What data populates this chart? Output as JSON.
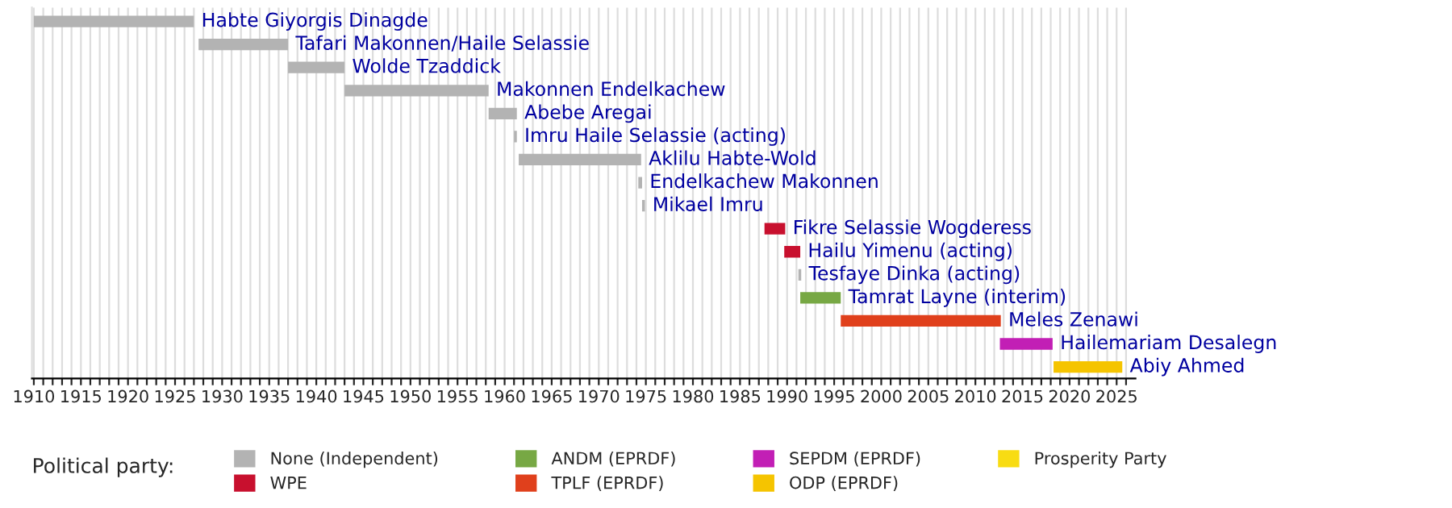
{
  "chart_data": {
    "type": "bar",
    "orientation": "horizontal",
    "legend_title": "Political party:",
    "legend": "bottom",
    "grid": "x",
    "tick_labels": "x",
    "categories": [
      "Habte Giyorgis Dinagde",
      "Tafari Makonnen/Haile Selassie",
      "Wolde Tzaddick",
      "Makonnen Endelkachew",
      "Abebe Aregai",
      "Imru Haile Selassie (acting)",
      "Aklilu Habte-Wold",
      "Endelkachew Makonnen",
      "Mikael Imru",
      "Fikre Selassie Wogderess",
      "Hailu Yimenu (acting)",
      "Tesfaye Dinka (acting)",
      "Tamrat Layne (interim)",
      "Meles Zenawi",
      "Hailemariam Desalegn",
      "Abiy Ahmed"
    ],
    "xlim": [
      1909.8,
      2027
    ],
    "xticks": [
      1910,
      {
        "value": 1911,
        "label": null
      },
      {
        "value": 1912,
        "label": null
      },
      {
        "value": 1913,
        "label": null
      },
      {
        "value": 1914,
        "label": null
      },
      1915,
      {
        "value": 1916,
        "label": null
      },
      {
        "value": 1917,
        "label": null
      },
      {
        "value": 1918,
        "label": null
      },
      {
        "value": 1919,
        "label": null
      },
      1920,
      {
        "value": 1921,
        "label": null
      },
      {
        "value": 1922,
        "label": null
      },
      {
        "value": 1923,
        "label": null
      },
      {
        "value": 1924,
        "label": null
      },
      1925,
      {
        "value": 1926,
        "label": null
      },
      {
        "value": 1927,
        "label": null
      },
      {
        "value": 1928,
        "label": null
      },
      {
        "value": 1929,
        "label": null
      },
      1930,
      {
        "value": 1931,
        "label": null
      },
      {
        "value": 1932,
        "label": null
      },
      {
        "value": 1933,
        "label": null
      },
      {
        "value": 1934,
        "label": null
      },
      1935,
      {
        "value": 1936,
        "label": null
      },
      {
        "value": 1937,
        "label": null
      },
      {
        "value": 1938,
        "label": null
      },
      {
        "value": 1939,
        "label": null
      },
      1940,
      {
        "value": 1941,
        "label": null
      },
      {
        "value": 1942,
        "label": null
      },
      {
        "value": 1943,
        "label": null
      },
      {
        "value": 1944,
        "label": null
      },
      1945,
      {
        "value": 1946,
        "label": null
      },
      {
        "value": 1947,
        "label": null
      },
      {
        "value": 1948,
        "label": null
      },
      {
        "value": 1949,
        "label": null
      },
      1950,
      {
        "value": 1951,
        "label": null
      },
      {
        "value": 1952,
        "label": null
      },
      {
        "value": 1953,
        "label": null
      },
      {
        "value": 1954,
        "label": null
      },
      1955,
      {
        "value": 1956,
        "label": null
      },
      {
        "value": 1957,
        "label": null
      },
      {
        "value": 1958,
        "label": null
      },
      {
        "value": 1959,
        "label": null
      },
      1960,
      {
        "value": 1961,
        "label": null
      },
      {
        "value": 1962,
        "label": null
      },
      {
        "value": 1963,
        "label": null
      },
      {
        "value": 1964,
        "label": null
      },
      1965,
      {
        "value": 1966,
        "label": null
      },
      {
        "value": 1967,
        "label": null
      },
      {
        "value": 1968,
        "label": null
      },
      {
        "value": 1969,
        "label": null
      },
      1970,
      {
        "value": 1971,
        "label": null
      },
      {
        "value": 1972,
        "label": null
      },
      {
        "value": 1973,
        "label": null
      },
      {
        "value": 1974,
        "label": null
      },
      1975,
      {
        "value": 1976,
        "label": null
      },
      {
        "value": 1977,
        "label": null
      },
      {
        "value": 1978,
        "label": null
      },
      {
        "value": 1979,
        "label": null
      },
      1980,
      {
        "value": 1981,
        "label": null
      },
      {
        "value": 1982,
        "label": null
      },
      {
        "value": 1983,
        "label": null
      },
      {
        "value": 1984,
        "label": null
      },
      1985,
      {
        "value": 1986,
        "label": null
      },
      {
        "value": 1987,
        "label": null
      },
      {
        "value": 1988,
        "label": null
      },
      {
        "value": 1989,
        "label": null
      },
      1990,
      {
        "value": 1991,
        "label": null
      },
      {
        "value": 1992,
        "label": null
      },
      {
        "value": 1993,
        "label": null
      },
      {
        "value": 1994,
        "label": null
      },
      1995,
      {
        "value": 1996,
        "label": null
      },
      {
        "value": 1997,
        "label": null
      },
      {
        "value": 1998,
        "label": null
      },
      {
        "value": 1999,
        "label": null
      },
      2000,
      {
        "value": 2001,
        "label": null
      },
      {
        "value": 2002,
        "label": null
      },
      {
        "value": 2003,
        "label": null
      },
      {
        "value": 2004,
        "label": null
      },
      2005,
      {
        "value": 2006,
        "label": null
      },
      {
        "value": 2007,
        "label": null
      },
      {
        "value": 2008,
        "label": null
      },
      {
        "value": 2009,
        "label": null
      },
      2010,
      {
        "value": 2011,
        "label": null
      },
      {
        "value": 2012,
        "label": null
      },
      {
        "value": 2013,
        "label": null
      },
      {
        "value": 2014,
        "label": null
      },
      2015,
      {
        "value": 2016,
        "label": null
      },
      {
        "value": 2017,
        "label": null
      },
      {
        "value": 2018,
        "label": null
      },
      {
        "value": 2019,
        "label": null
      },
      2020,
      {
        "value": 2021,
        "label": null
      },
      {
        "value": 2022,
        "label": null
      },
      {
        "value": 2023,
        "label": null
      },
      {
        "value": 2024,
        "label": null
      },
      2025,
      {
        "value": 2026,
        "label": null
      }
    ],
    "series": [
      {
        "name": "None (Independent)",
        "color": "#b3b3b3",
        "base": [
          1910,
          1927.5,
          1937,
          1943,
          1958.3,
          1961,
          1961.5,
          1974.2,
          1974.6,
          null,
          null,
          1991.2,
          null,
          null,
          null,
          null
        ],
        "values": [
          17,
          9.5,
          6,
          15.3,
          3,
          0.3,
          13,
          0.4,
          0.3,
          null,
          null,
          0.3,
          null,
          null,
          null,
          null
        ]
      },
      {
        "name": "WPE",
        "color": "#c8102e",
        "base": [
          null,
          null,
          null,
          null,
          null,
          null,
          null,
          null,
          null,
          1987.6,
          1989.7,
          null,
          null,
          null,
          null,
          null
        ],
        "values": [
          null,
          null,
          null,
          null,
          null,
          null,
          null,
          null,
          null,
          2.2,
          1.7,
          null,
          null,
          null,
          null,
          null
        ]
      },
      {
        "name": "ANDM (EPRDF)",
        "color": "#77a844",
        "base": [
          null,
          null,
          null,
          null,
          null,
          null,
          null,
          null,
          null,
          null,
          null,
          null,
          1991.4,
          null,
          null,
          null
        ],
        "values": [
          null,
          null,
          null,
          null,
          null,
          null,
          null,
          null,
          null,
          null,
          null,
          null,
          4.3,
          null,
          null,
          null
        ]
      },
      {
        "name": "TPLF (EPRDF)",
        "color": "#e0401c",
        "base": [
          null,
          null,
          null,
          null,
          null,
          null,
          null,
          null,
          null,
          null,
          null,
          null,
          null,
          1995.7,
          null,
          null
        ],
        "values": [
          null,
          null,
          null,
          null,
          null,
          null,
          null,
          null,
          null,
          null,
          null,
          null,
          null,
          17,
          null,
          null
        ]
      },
      {
        "name": "SEPDM (EPRDF)",
        "color": "#c21fb5",
        "base": [
          null,
          null,
          null,
          null,
          null,
          null,
          null,
          null,
          null,
          null,
          null,
          null,
          null,
          null,
          2012.6,
          null
        ],
        "values": [
          null,
          null,
          null,
          null,
          null,
          null,
          null,
          null,
          null,
          null,
          null,
          null,
          null,
          null,
          5.6,
          null
        ]
      },
      {
        "name": "ODP (EPRDF)",
        "color": "#f5c400",
        "base": [
          null,
          null,
          null,
          null,
          null,
          null,
          null,
          null,
          null,
          null,
          null,
          null,
          null,
          null,
          null,
          2018.3
        ],
        "values": [
          null,
          null,
          null,
          null,
          null,
          null,
          null,
          null,
          null,
          null,
          null,
          null,
          null,
          null,
          null,
          7.3
        ]
      },
      {
        "name": "Prosperity Party",
        "color": "#f8dc13",
        "base": [
          null,
          null,
          null,
          null,
          null,
          null,
          null,
          null,
          null,
          null,
          null,
          null,
          null,
          null,
          null,
          null
        ],
        "values": [
          null,
          null,
          null,
          null,
          null,
          null,
          null,
          null,
          null,
          null,
          null,
          null,
          null,
          null,
          null,
          null
        ]
      }
    ]
  }
}
